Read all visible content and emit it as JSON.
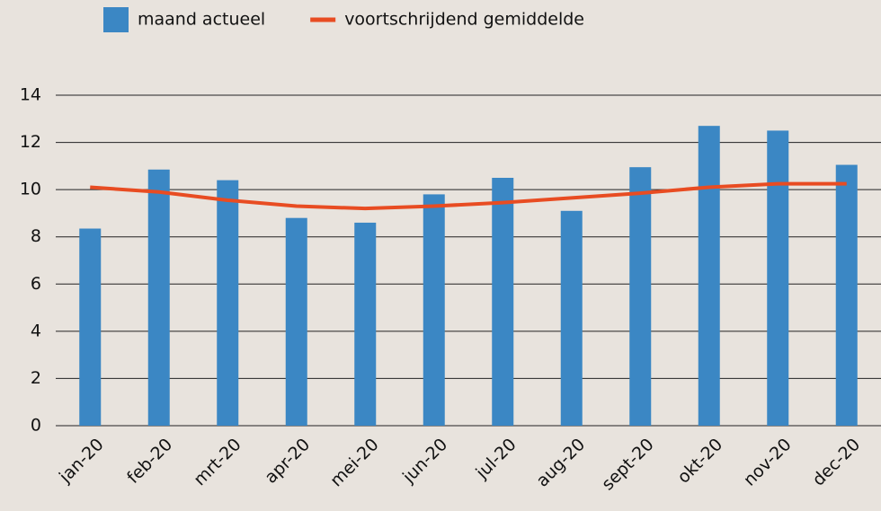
{
  "chart_data": {
    "type": "bar",
    "categories": [
      "jan-20",
      "feb-20",
      "mrt-20",
      "apr-20",
      "mei-20",
      "jun-20",
      "jul-20",
      "aug-20",
      "sept-20",
      "okt-20",
      "nov-20",
      "dec-20"
    ],
    "series": [
      {
        "name": "maand actueel",
        "type": "bar",
        "color": "#3b87c4",
        "values": [
          8.35,
          10.85,
          10.4,
          8.8,
          8.6,
          9.8,
          10.5,
          9.1,
          10.95,
          12.7,
          12.5,
          11.05
        ]
      },
      {
        "name": "voortschrijdend gemiddelde",
        "type": "line",
        "color": "#e84c22",
        "values": [
          10.1,
          9.9,
          9.55,
          9.3,
          9.2,
          9.3,
          9.45,
          9.65,
          9.85,
          10.1,
          10.25,
          10.25
        ]
      }
    ],
    "ylim": [
      0,
      14
    ],
    "yticks": [
      0,
      2,
      4,
      6,
      8,
      10,
      12,
      14
    ],
    "grid": true,
    "legend": "top"
  }
}
